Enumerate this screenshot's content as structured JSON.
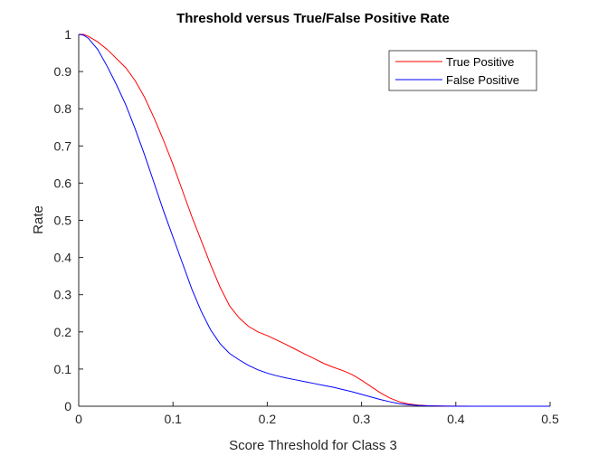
{
  "chart_data": {
    "type": "line",
    "title": "Threshold versus True/False Positive Rate",
    "xlabel": "Score Threshold for Class 3",
    "ylabel": "Rate",
    "xlim": [
      0,
      0.5
    ],
    "ylim": [
      0,
      1
    ],
    "xticks": [
      0,
      0.1,
      0.2,
      0.3,
      0.4,
      0.5
    ],
    "xtick_labels": [
      "0",
      "0.1",
      "0.2",
      "0.3",
      "0.4",
      "0.5"
    ],
    "yticks": [
      0,
      0.1,
      0.2,
      0.3,
      0.4,
      0.5,
      0.6,
      0.7,
      0.8,
      0.9,
      1
    ],
    "ytick_labels": [
      "0",
      "0.1",
      "0.2",
      "0.3",
      "0.4",
      "0.5",
      "0.6",
      "0.7",
      "0.8",
      "0.9",
      "1"
    ],
    "grid": false,
    "legend_position": "top-right",
    "series": [
      {
        "name": "True Positive",
        "color": "#ff0000",
        "x": [
          0,
          0.005,
          0.01,
          0.02,
          0.03,
          0.04,
          0.05,
          0.06,
          0.07,
          0.08,
          0.09,
          0.1,
          0.11,
          0.12,
          0.13,
          0.14,
          0.15,
          0.16,
          0.17,
          0.18,
          0.19,
          0.2,
          0.21,
          0.22,
          0.23,
          0.24,
          0.25,
          0.26,
          0.27,
          0.28,
          0.29,
          0.3,
          0.31,
          0.32,
          0.33,
          0.34,
          0.35,
          0.36,
          0.37,
          0.38,
          0.39,
          0.4,
          0.42,
          0.45,
          0.5
        ],
        "y": [
          1,
          1,
          0.995,
          0.98,
          0.96,
          0.935,
          0.91,
          0.875,
          0.83,
          0.775,
          0.715,
          0.65,
          0.58,
          0.51,
          0.445,
          0.38,
          0.32,
          0.27,
          0.238,
          0.215,
          0.2,
          0.19,
          0.178,
          0.166,
          0.153,
          0.14,
          0.128,
          0.115,
          0.105,
          0.096,
          0.085,
          0.07,
          0.053,
          0.036,
          0.022,
          0.012,
          0.006,
          0.003,
          0.0015,
          0.0008,
          0.0004,
          0.0002,
          0.0001,
          0,
          0
        ]
      },
      {
        "name": "False Positive",
        "color": "#0000ff",
        "x": [
          0,
          0.005,
          0.01,
          0.02,
          0.03,
          0.04,
          0.05,
          0.06,
          0.07,
          0.08,
          0.09,
          0.1,
          0.11,
          0.12,
          0.13,
          0.14,
          0.15,
          0.16,
          0.17,
          0.18,
          0.19,
          0.2,
          0.21,
          0.22,
          0.23,
          0.24,
          0.25,
          0.26,
          0.27,
          0.28,
          0.29,
          0.3,
          0.31,
          0.32,
          0.33,
          0.34,
          0.35,
          0.36,
          0.37,
          0.38,
          0.39,
          0.4,
          0.42,
          0.45,
          0.5
        ],
        "y": [
          1,
          0.998,
          0.99,
          0.96,
          0.915,
          0.865,
          0.81,
          0.745,
          0.675,
          0.6,
          0.525,
          0.455,
          0.385,
          0.315,
          0.255,
          0.205,
          0.168,
          0.142,
          0.125,
          0.11,
          0.098,
          0.089,
          0.082,
          0.076,
          0.071,
          0.066,
          0.061,
          0.056,
          0.051,
          0.045,
          0.039,
          0.032,
          0.025,
          0.018,
          0.012,
          0.007,
          0.004,
          0.002,
          0.001,
          0.0005,
          0.0002,
          0.0001,
          0,
          0,
          0
        ]
      }
    ]
  }
}
